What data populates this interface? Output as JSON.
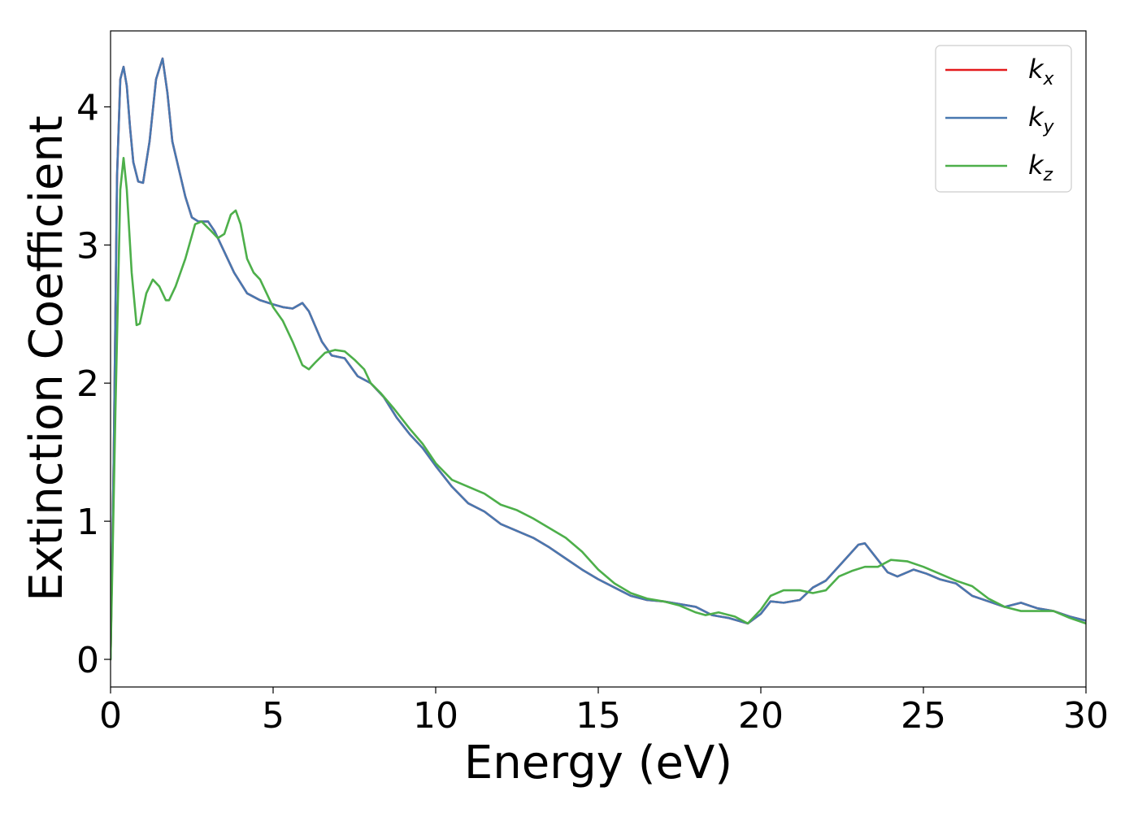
{
  "chart_data": {
    "type": "line",
    "xlabel": "Energy (eV)",
    "ylabel": "Extinction Coefficient",
    "xlim": [
      0,
      30
    ],
    "ylim": [
      -0.2,
      4.55
    ],
    "xticks": [
      0,
      5,
      10,
      15,
      20,
      25,
      30
    ],
    "yticks": [
      0,
      1,
      2,
      3,
      4
    ],
    "grid": false,
    "legend_position": "top-right",
    "series": [
      {
        "name": "k_x",
        "label_base": "k",
        "label_sub": "x",
        "color": "#e41a1c",
        "points": [
          [
            0,
            0
          ],
          [
            0.1,
            1.5
          ],
          [
            0.2,
            3.5
          ],
          [
            0.3,
            4.2
          ],
          [
            0.4,
            4.29
          ],
          [
            0.5,
            4.15
          ],
          [
            0.6,
            3.85
          ],
          [
            0.7,
            3.6
          ],
          [
            0.85,
            3.46
          ],
          [
            1.0,
            3.45
          ],
          [
            1.2,
            3.75
          ],
          [
            1.4,
            4.2
          ],
          [
            1.6,
            4.35
          ],
          [
            1.75,
            4.1
          ],
          [
            1.9,
            3.75
          ],
          [
            2.1,
            3.55
          ],
          [
            2.3,
            3.35
          ],
          [
            2.5,
            3.2
          ],
          [
            2.7,
            3.17
          ],
          [
            3.0,
            3.17
          ],
          [
            3.2,
            3.1
          ],
          [
            3.5,
            2.95
          ],
          [
            3.8,
            2.8
          ],
          [
            4.2,
            2.65
          ],
          [
            4.6,
            2.6
          ],
          [
            5.0,
            2.57
          ],
          [
            5.3,
            2.55
          ],
          [
            5.6,
            2.54
          ],
          [
            5.9,
            2.58
          ],
          [
            6.1,
            2.52
          ],
          [
            6.5,
            2.3
          ],
          [
            6.8,
            2.2
          ],
          [
            7.2,
            2.18
          ],
          [
            7.6,
            2.05
          ],
          [
            8.0,
            2.0
          ],
          [
            8.4,
            1.9
          ],
          [
            8.8,
            1.75
          ],
          [
            9.2,
            1.63
          ],
          [
            9.6,
            1.53
          ],
          [
            10.0,
            1.4
          ],
          [
            10.5,
            1.25
          ],
          [
            11.0,
            1.13
          ],
          [
            11.5,
            1.07
          ],
          [
            12.0,
            0.98
          ],
          [
            12.5,
            0.93
          ],
          [
            13.0,
            0.88
          ],
          [
            13.5,
            0.81
          ],
          [
            14.0,
            0.73
          ],
          [
            14.5,
            0.65
          ],
          [
            15.0,
            0.58
          ],
          [
            15.5,
            0.52
          ],
          [
            16.0,
            0.46
          ],
          [
            16.5,
            0.43
          ],
          [
            17.0,
            0.42
          ],
          [
            17.5,
            0.4
          ],
          [
            18.0,
            0.38
          ],
          [
            18.5,
            0.32
          ],
          [
            19.0,
            0.3
          ],
          [
            19.6,
            0.26
          ],
          [
            20.0,
            0.33
          ],
          [
            20.3,
            0.42
          ],
          [
            20.7,
            0.41
          ],
          [
            21.2,
            0.43
          ],
          [
            21.6,
            0.52
          ],
          [
            22.0,
            0.57
          ],
          [
            22.5,
            0.7
          ],
          [
            23.0,
            0.83
          ],
          [
            23.2,
            0.84
          ],
          [
            23.5,
            0.75
          ],
          [
            23.9,
            0.63
          ],
          [
            24.2,
            0.6
          ],
          [
            24.7,
            0.65
          ],
          [
            25.1,
            0.62
          ],
          [
            25.5,
            0.58
          ],
          [
            26.0,
            0.55
          ],
          [
            26.5,
            0.46
          ],
          [
            27.0,
            0.42
          ],
          [
            27.5,
            0.38
          ],
          [
            28.0,
            0.41
          ],
          [
            28.5,
            0.37
          ],
          [
            29.0,
            0.35
          ],
          [
            29.5,
            0.31
          ],
          [
            30.0,
            0.28
          ]
        ]
      },
      {
        "name": "k_y",
        "label_base": "k",
        "label_sub": "y",
        "color": "#4878b0",
        "points": [
          [
            0,
            0
          ],
          [
            0.1,
            1.5
          ],
          [
            0.2,
            3.5
          ],
          [
            0.3,
            4.2
          ],
          [
            0.4,
            4.29
          ],
          [
            0.5,
            4.15
          ],
          [
            0.6,
            3.85
          ],
          [
            0.7,
            3.6
          ],
          [
            0.85,
            3.46
          ],
          [
            1.0,
            3.45
          ],
          [
            1.2,
            3.75
          ],
          [
            1.4,
            4.2
          ],
          [
            1.6,
            4.35
          ],
          [
            1.75,
            4.1
          ],
          [
            1.9,
            3.75
          ],
          [
            2.1,
            3.55
          ],
          [
            2.3,
            3.35
          ],
          [
            2.5,
            3.2
          ],
          [
            2.7,
            3.17
          ],
          [
            3.0,
            3.17
          ],
          [
            3.2,
            3.1
          ],
          [
            3.5,
            2.95
          ],
          [
            3.8,
            2.8
          ],
          [
            4.2,
            2.65
          ],
          [
            4.6,
            2.6
          ],
          [
            5.0,
            2.57
          ],
          [
            5.3,
            2.55
          ],
          [
            5.6,
            2.54
          ],
          [
            5.9,
            2.58
          ],
          [
            6.1,
            2.52
          ],
          [
            6.5,
            2.3
          ],
          [
            6.8,
            2.2
          ],
          [
            7.2,
            2.18
          ],
          [
            7.6,
            2.05
          ],
          [
            8.0,
            2.0
          ],
          [
            8.4,
            1.9
          ],
          [
            8.8,
            1.75
          ],
          [
            9.2,
            1.63
          ],
          [
            9.6,
            1.53
          ],
          [
            10.0,
            1.4
          ],
          [
            10.5,
            1.25
          ],
          [
            11.0,
            1.13
          ],
          [
            11.5,
            1.07
          ],
          [
            12.0,
            0.98
          ],
          [
            12.5,
            0.93
          ],
          [
            13.0,
            0.88
          ],
          [
            13.5,
            0.81
          ],
          [
            14.0,
            0.73
          ],
          [
            14.5,
            0.65
          ],
          [
            15.0,
            0.58
          ],
          [
            15.5,
            0.52
          ],
          [
            16.0,
            0.46
          ],
          [
            16.5,
            0.43
          ],
          [
            17.0,
            0.42
          ],
          [
            17.5,
            0.4
          ],
          [
            18.0,
            0.38
          ],
          [
            18.5,
            0.32
          ],
          [
            19.0,
            0.3
          ],
          [
            19.6,
            0.26
          ],
          [
            20.0,
            0.33
          ],
          [
            20.3,
            0.42
          ],
          [
            20.7,
            0.41
          ],
          [
            21.2,
            0.43
          ],
          [
            21.6,
            0.52
          ],
          [
            22.0,
            0.57
          ],
          [
            22.5,
            0.7
          ],
          [
            23.0,
            0.83
          ],
          [
            23.2,
            0.84
          ],
          [
            23.5,
            0.75
          ],
          [
            23.9,
            0.63
          ],
          [
            24.2,
            0.6
          ],
          [
            24.7,
            0.65
          ],
          [
            25.1,
            0.62
          ],
          [
            25.5,
            0.58
          ],
          [
            26.0,
            0.55
          ],
          [
            26.5,
            0.46
          ],
          [
            27.0,
            0.42
          ],
          [
            27.5,
            0.38
          ],
          [
            28.0,
            0.41
          ],
          [
            28.5,
            0.37
          ],
          [
            29.0,
            0.35
          ],
          [
            29.5,
            0.31
          ],
          [
            30.0,
            0.28
          ]
        ]
      },
      {
        "name": "k_z",
        "label_base": "k",
        "label_sub": "z",
        "color": "#4daf4a",
        "points": [
          [
            0,
            0
          ],
          [
            0.15,
            1.8
          ],
          [
            0.3,
            3.4
          ],
          [
            0.4,
            3.63
          ],
          [
            0.5,
            3.4
          ],
          [
            0.65,
            2.8
          ],
          [
            0.8,
            2.42
          ],
          [
            0.9,
            2.43
          ],
          [
            1.1,
            2.65
          ],
          [
            1.3,
            2.75
          ],
          [
            1.5,
            2.7
          ],
          [
            1.7,
            2.6
          ],
          [
            1.8,
            2.6
          ],
          [
            2.0,
            2.7
          ],
          [
            2.3,
            2.9
          ],
          [
            2.6,
            3.15
          ],
          [
            2.8,
            3.17
          ],
          [
            3.1,
            3.1
          ],
          [
            3.3,
            3.05
          ],
          [
            3.5,
            3.08
          ],
          [
            3.7,
            3.22
          ],
          [
            3.85,
            3.25
          ],
          [
            4.0,
            3.15
          ],
          [
            4.2,
            2.9
          ],
          [
            4.4,
            2.8
          ],
          [
            4.6,
            2.75
          ],
          [
            4.8,
            2.65
          ],
          [
            5.0,
            2.55
          ],
          [
            5.3,
            2.45
          ],
          [
            5.6,
            2.3
          ],
          [
            5.9,
            2.13
          ],
          [
            6.1,
            2.1
          ],
          [
            6.3,
            2.15
          ],
          [
            6.6,
            2.22
          ],
          [
            6.9,
            2.24
          ],
          [
            7.2,
            2.23
          ],
          [
            7.5,
            2.17
          ],
          [
            7.8,
            2.1
          ],
          [
            8.0,
            2.0
          ],
          [
            8.3,
            1.93
          ],
          [
            8.7,
            1.82
          ],
          [
            9.2,
            1.67
          ],
          [
            9.6,
            1.56
          ],
          [
            10.0,
            1.42
          ],
          [
            10.5,
            1.3
          ],
          [
            11.0,
            1.25
          ],
          [
            11.5,
            1.2
          ],
          [
            12.0,
            1.12
          ],
          [
            12.5,
            1.08
          ],
          [
            13.0,
            1.02
          ],
          [
            13.5,
            0.95
          ],
          [
            14.0,
            0.88
          ],
          [
            14.5,
            0.78
          ],
          [
            15.0,
            0.65
          ],
          [
            15.5,
            0.55
          ],
          [
            16.0,
            0.48
          ],
          [
            16.5,
            0.44
          ],
          [
            17.0,
            0.42
          ],
          [
            17.5,
            0.39
          ],
          [
            18.0,
            0.34
          ],
          [
            18.3,
            0.32
          ],
          [
            18.7,
            0.34
          ],
          [
            19.2,
            0.31
          ],
          [
            19.6,
            0.26
          ],
          [
            20.0,
            0.36
          ],
          [
            20.3,
            0.46
          ],
          [
            20.7,
            0.5
          ],
          [
            21.2,
            0.5
          ],
          [
            21.6,
            0.48
          ],
          [
            22.0,
            0.5
          ],
          [
            22.4,
            0.6
          ],
          [
            22.8,
            0.64
          ],
          [
            23.2,
            0.67
          ],
          [
            23.6,
            0.67
          ],
          [
            24.0,
            0.72
          ],
          [
            24.5,
            0.71
          ],
          [
            25.0,
            0.67
          ],
          [
            25.5,
            0.62
          ],
          [
            26.0,
            0.57
          ],
          [
            26.5,
            0.53
          ],
          [
            27.0,
            0.44
          ],
          [
            27.5,
            0.38
          ],
          [
            28.0,
            0.35
          ],
          [
            28.5,
            0.35
          ],
          [
            29.0,
            0.35
          ],
          [
            29.5,
            0.3
          ],
          [
            30.0,
            0.26
          ]
        ]
      }
    ]
  }
}
